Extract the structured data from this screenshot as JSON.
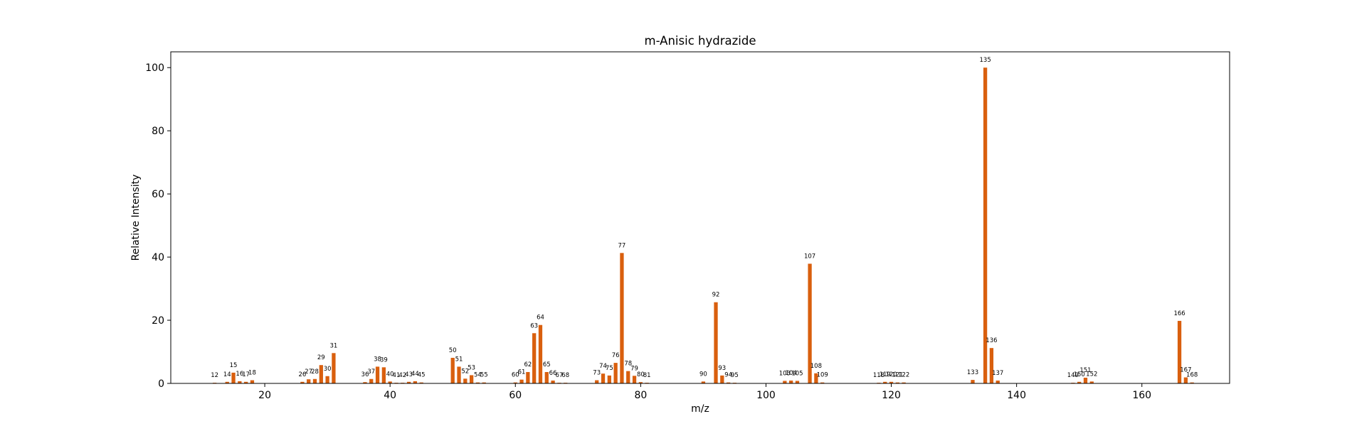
{
  "chart_data": {
    "type": "bar",
    "title": "m-Anisic hydrazide",
    "xlabel": "m/z",
    "ylabel": "Relative Intensity",
    "xlim": [
      5,
      174
    ],
    "ylim": [
      0,
      105
    ],
    "xticks": [
      20,
      40,
      60,
      80,
      100,
      120,
      140,
      160
    ],
    "yticks": [
      0,
      20,
      40,
      60,
      80,
      100
    ],
    "bar_color": "#d95f0e",
    "grid": false,
    "peaks": [
      {
        "mz": 12,
        "intensity": 0.2
      },
      {
        "mz": 14,
        "intensity": 0.5
      },
      {
        "mz": 15,
        "intensity": 3.4
      },
      {
        "mz": 16,
        "intensity": 0.7
      },
      {
        "mz": 17,
        "intensity": 0.5
      },
      {
        "mz": 18,
        "intensity": 1.0
      },
      {
        "mz": 26,
        "intensity": 0.5
      },
      {
        "mz": 27,
        "intensity": 1.3
      },
      {
        "mz": 28,
        "intensity": 1.4
      },
      {
        "mz": 29,
        "intensity": 5.8
      },
      {
        "mz": 30,
        "intensity": 2.3
      },
      {
        "mz": 31,
        "intensity": 9.6
      },
      {
        "mz": 36,
        "intensity": 0.4
      },
      {
        "mz": 37,
        "intensity": 1.4
      },
      {
        "mz": 38,
        "intensity": 5.3
      },
      {
        "mz": 39,
        "intensity": 5.1
      },
      {
        "mz": 40,
        "intensity": 0.6
      },
      {
        "mz": 41,
        "intensity": 0.2
      },
      {
        "mz": 42,
        "intensity": 0.2
      },
      {
        "mz": 43,
        "intensity": 0.5
      },
      {
        "mz": 44,
        "intensity": 0.7
      },
      {
        "mz": 45,
        "intensity": 0.3
      },
      {
        "mz": 50,
        "intensity": 8.1
      },
      {
        "mz": 51,
        "intensity": 5.3
      },
      {
        "mz": 52,
        "intensity": 1.5
      },
      {
        "mz": 53,
        "intensity": 2.6
      },
      {
        "mz": 54,
        "intensity": 0.3
      },
      {
        "mz": 55,
        "intensity": 0.3
      },
      {
        "mz": 60,
        "intensity": 0.3
      },
      {
        "mz": 61,
        "intensity": 1.2
      },
      {
        "mz": 62,
        "intensity": 3.6
      },
      {
        "mz": 63,
        "intensity": 15.9
      },
      {
        "mz": 64,
        "intensity": 18.5
      },
      {
        "mz": 65,
        "intensity": 3.6
      },
      {
        "mz": 66,
        "intensity": 0.9
      },
      {
        "mz": 67,
        "intensity": 0.2
      },
      {
        "mz": 68,
        "intensity": 0.2
      },
      {
        "mz": 73,
        "intensity": 1.0
      },
      {
        "mz": 74,
        "intensity": 3.1
      },
      {
        "mz": 75,
        "intensity": 2.5
      },
      {
        "mz": 76,
        "intensity": 6.5
      },
      {
        "mz": 77,
        "intensity": 41.3
      },
      {
        "mz": 78,
        "intensity": 3.9
      },
      {
        "mz": 79,
        "intensity": 2.4
      },
      {
        "mz": 80,
        "intensity": 0.4
      },
      {
        "mz": 81,
        "intensity": 0.2
      },
      {
        "mz": 90,
        "intensity": 0.6
      },
      {
        "mz": 92,
        "intensity": 25.7
      },
      {
        "mz": 93,
        "intensity": 2.5
      },
      {
        "mz": 94,
        "intensity": 0.3
      },
      {
        "mz": 95,
        "intensity": 0.2
      },
      {
        "mz": 103,
        "intensity": 0.8
      },
      {
        "mz": 104,
        "intensity": 0.9
      },
      {
        "mz": 105,
        "intensity": 0.8
      },
      {
        "mz": 107,
        "intensity": 37.9
      },
      {
        "mz": 108,
        "intensity": 3.2
      },
      {
        "mz": 109,
        "intensity": 0.3
      },
      {
        "mz": 118,
        "intensity": 0.2
      },
      {
        "mz": 119,
        "intensity": 0.5
      },
      {
        "mz": 120,
        "intensity": 0.5
      },
      {
        "mz": 121,
        "intensity": 0.3
      },
      {
        "mz": 122,
        "intensity": 0.3
      },
      {
        "mz": 133,
        "intensity": 1.1
      },
      {
        "mz": 135,
        "intensity": 100.0
      },
      {
        "mz": 136,
        "intensity": 11.2
      },
      {
        "mz": 137,
        "intensity": 0.9
      },
      {
        "mz": 149,
        "intensity": 0.2
      },
      {
        "mz": 150,
        "intensity": 0.5
      },
      {
        "mz": 151,
        "intensity": 1.8
      },
      {
        "mz": 152,
        "intensity": 0.6
      },
      {
        "mz": 166,
        "intensity": 19.8
      },
      {
        "mz": 167,
        "intensity": 1.9
      },
      {
        "mz": 168,
        "intensity": 0.3
      }
    ]
  }
}
